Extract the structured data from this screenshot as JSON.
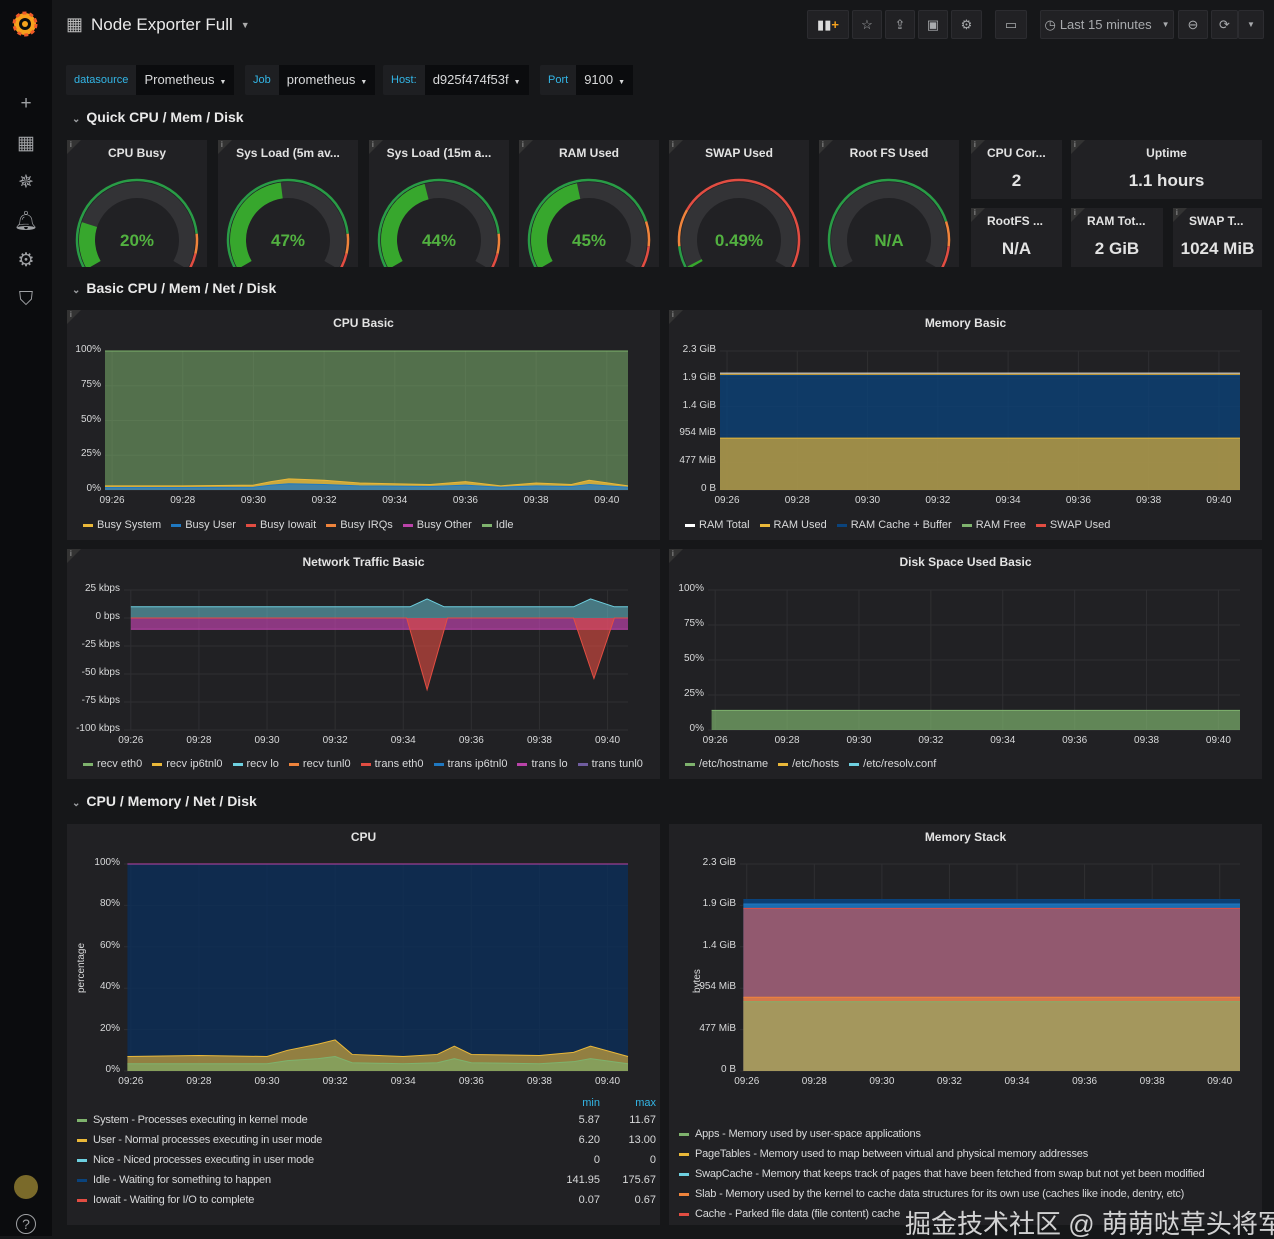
{
  "header": {
    "title": "Node Exporter Full",
    "time_range": "Last 15 minutes"
  },
  "variables": [
    {
      "label": "datasource",
      "value": "Prometheus"
    },
    {
      "label": "Job",
      "value": "prometheus"
    },
    {
      "label": "Host:",
      "value": "d925f474f53f"
    },
    {
      "label": "Port",
      "value": "9100"
    }
  ],
  "rows": [
    "Quick CPU / Mem / Disk",
    "Basic CPU / Mem / Net / Disk",
    "CPU / Memory / Net / Disk"
  ],
  "gauges": [
    {
      "title": "CPU Busy",
      "value": "20%",
      "fraction": 0.2,
      "thresholds": [
        [
          0.85,
          "#299c46"
        ],
        [
          0.93,
          "#ef843c"
        ],
        [
          1,
          "#e24d42"
        ]
      ]
    },
    {
      "title": "Sys Load (5m av...",
      "value": "47%",
      "fraction": 0.47,
      "thresholds": [
        [
          0.85,
          "#299c46"
        ],
        [
          0.93,
          "#ef843c"
        ],
        [
          1,
          "#e24d42"
        ]
      ]
    },
    {
      "title": "Sys Load (15m a...",
      "value": "44%",
      "fraction": 0.44,
      "thresholds": [
        [
          0.85,
          "#299c46"
        ],
        [
          0.93,
          "#ef843c"
        ],
        [
          1,
          "#e24d42"
        ]
      ]
    },
    {
      "title": "RAM Used",
      "value": "45%",
      "fraction": 0.45,
      "thresholds": [
        [
          0.8,
          "#299c46"
        ],
        [
          0.9,
          "#ef843c"
        ],
        [
          1,
          "#e24d42"
        ]
      ]
    },
    {
      "title": "SWAP Used",
      "value": "0.49%",
      "fraction": 0.0049,
      "thresholds": [
        [
          0.1,
          "#299c46"
        ],
        [
          0.25,
          "#ef843c"
        ],
        [
          1,
          "#e24d42"
        ]
      ]
    },
    {
      "title": "Root FS Used",
      "value": "N/A",
      "fraction": 0,
      "thresholds": [
        [
          0.8,
          "#299c46"
        ],
        [
          0.9,
          "#ef843c"
        ],
        [
          1,
          "#e24d42"
        ]
      ]
    }
  ],
  "stats": [
    {
      "title": "CPU Cor...",
      "value": "2"
    },
    {
      "title": "Uptime",
      "value": "1.1 hours"
    },
    {
      "title": "RootFS ...",
      "value": "N/A"
    },
    {
      "title": "RAM Tot...",
      "value": "2 GiB"
    },
    {
      "title": "SWAP T...",
      "value": "1024 MiB"
    }
  ],
  "x_ticks": [
    "09:26",
    "09:28",
    "09:30",
    "09:32",
    "09:34",
    "09:36",
    "09:38",
    "09:40"
  ],
  "graphs": {
    "cpu_basic": {
      "title": "CPU Basic",
      "y_max": 100,
      "y_min": 0,
      "y_ticks": [
        [
          0,
          "0%"
        ],
        [
          25,
          "25%"
        ],
        [
          50,
          "50%"
        ],
        [
          75,
          "75%"
        ],
        [
          100,
          "100%"
        ]
      ],
      "series": [
        {
          "name": "Idle",
          "color": "#7eb26d",
          "op": 0.55,
          "points": [
            [
              -0.2,
              100
            ],
            [
              14.6,
              100
            ]
          ]
        },
        {
          "name": "Busy User",
          "color": "#eab839",
          "op": 0.8,
          "points": [
            [
              -0.2,
              3
            ],
            [
              2,
              3
            ],
            [
              4,
              3.5
            ],
            [
              4.5,
              6
            ],
            [
              5,
              8
            ],
            [
              6,
              7
            ],
            [
              7,
              5
            ],
            [
              9,
              4
            ],
            [
              10,
              6
            ],
            [
              11,
              3
            ],
            [
              12,
              5
            ],
            [
              13,
              4
            ],
            [
              13.5,
              7
            ],
            [
              14.6,
              3
            ]
          ]
        },
        {
          "name": "Busy System",
          "color": "#1f78c1",
          "op": 0.8,
          "points": [
            [
              -0.2,
              1.8
            ],
            [
              2,
              1.8
            ],
            [
              4,
              2
            ],
            [
              4.5,
              3.5
            ],
            [
              5,
              4.5
            ],
            [
              6,
              4
            ],
            [
              7,
              3
            ],
            [
              9,
              2.5
            ],
            [
              10,
              3.5
            ],
            [
              11,
              2
            ],
            [
              12,
              3
            ],
            [
              13,
              2.5
            ],
            [
              13.5,
              4
            ],
            [
              14.6,
              2
            ]
          ]
        }
      ],
      "legend": [
        [
          "Busy System",
          "#eab839"
        ],
        [
          "Busy User",
          "#1f78c1"
        ],
        [
          "Busy Iowait",
          "#e24d42"
        ],
        [
          "Busy IRQs",
          "#ef843c"
        ],
        [
          "Busy Other",
          "#ba43a9"
        ],
        [
          "Idle",
          "#7eb26d"
        ]
      ]
    },
    "memory_basic": {
      "title": "Memory Basic",
      "y_max": 2.33,
      "y_min": 0,
      "y_ticks": [
        [
          0,
          "0 B"
        ],
        [
          0.466,
          "477 MiB"
        ],
        [
          0.932,
          "954 MiB"
        ],
        [
          1.398,
          "1.4 GiB"
        ],
        [
          1.864,
          "1.9 GiB"
        ],
        [
          2.33,
          "2.3 GiB"
        ]
      ],
      "series": [
        {
          "name": "RAM Cache + Buffer",
          "color": "#0a437c",
          "op": 0.75,
          "points": [
            [
              -0.2,
              1.92
            ],
            [
              14.6,
              1.92
            ]
          ]
        },
        {
          "name": "RAM Used",
          "color": "#eab839",
          "op": 0.65,
          "points": [
            [
              -0.2,
              0.87
            ],
            [
              14.6,
              0.87
            ]
          ]
        },
        {
          "name": "RAM Free",
          "color": "#eab839",
          "op": 0,
          "line": true,
          "points": [
            [
              -0.2,
              1.94
            ],
            [
              14.6,
              1.94
            ]
          ]
        },
        {
          "name": "RAM Total",
          "color": "#dddddd",
          "op": 0,
          "line": true,
          "points": [
            [
              -0.2,
              1.96
            ],
            [
              14.6,
              1.96
            ]
          ]
        }
      ],
      "legend": [
        [
          "RAM Total",
          "#ffffff"
        ],
        [
          "RAM Used",
          "#eab839"
        ],
        [
          "RAM Cache + Buffer",
          "#0a437c"
        ],
        [
          "RAM Free",
          "#7eb26d"
        ],
        [
          "SWAP Used",
          "#e24d42"
        ]
      ]
    },
    "network_basic": {
      "title": "Network Traffic Basic",
      "y_max": 25,
      "y_min": -100,
      "y_ticks": [
        [
          25,
          "25 kbps"
        ],
        [
          0,
          "0 bps"
        ],
        [
          -25,
          "-25 kbps"
        ],
        [
          -50,
          "-50 kbps"
        ],
        [
          -75,
          "-75 kbps"
        ],
        [
          -100,
          "-100 kbps"
        ]
      ],
      "series": [
        {
          "name": "recv eth0",
          "color": "#6ed0e0",
          "op": 0.5,
          "points": [
            [
              0,
              10
            ],
            [
              8.2,
              10
            ],
            [
              8.7,
              17
            ],
            [
              9.2,
              10
            ],
            [
              13,
              10
            ],
            [
              13.5,
              17
            ],
            [
              14.2,
              10
            ],
            [
              14.6,
              10
            ]
          ]
        },
        {
          "name": "trans lo",
          "color": "#ba43a9",
          "op": 0.7,
          "points": [
            [
              0,
              -10
            ],
            [
              14.6,
              -10
            ]
          ]
        },
        {
          "name": "trans eth0",
          "color": "#e24d42",
          "op": 0.6,
          "points": [
            [
              0,
              0
            ],
            [
              8.1,
              0
            ],
            [
              8.7,
              -64
            ],
            [
              9.3,
              0
            ],
            [
              13,
              0
            ],
            [
              13.6,
              -54
            ],
            [
              14.2,
              0
            ],
            [
              14.6,
              0
            ]
          ]
        }
      ],
      "legend": [
        [
          "recv eth0",
          "#7eb26d"
        ],
        [
          "recv ip6tnl0",
          "#eab839"
        ],
        [
          "recv lo",
          "#6ed0e0"
        ],
        [
          "recv tunl0",
          "#ef843c"
        ],
        [
          "trans eth0",
          "#e24d42"
        ],
        [
          "trans ip6tnl0",
          "#1f78c1"
        ],
        [
          "trans lo",
          "#ba43a9"
        ],
        [
          "trans tunl0",
          "#705da0"
        ]
      ]
    },
    "disk_basic": {
      "title": "Disk Space Used Basic",
      "y_max": 100,
      "y_min": 0,
      "y_ticks": [
        [
          0,
          "0%"
        ],
        [
          25,
          "25%"
        ],
        [
          50,
          "50%"
        ],
        [
          75,
          "75%"
        ],
        [
          100,
          "100%"
        ]
      ],
      "series": [
        {
          "name": "/etc/hostname",
          "color": "#7eb26d",
          "op": 0.7,
          "points": [
            [
              -0.1,
              14
            ],
            [
              14.6,
              14
            ]
          ]
        }
      ],
      "legend": [
        [
          "/etc/hostname",
          "#7eb26d"
        ],
        [
          "/etc/hosts",
          "#eab839"
        ],
        [
          "/etc/resolv.conf",
          "#6ed0e0"
        ]
      ]
    },
    "cpu": {
      "title": "CPU",
      "y_max": 100,
      "y_min": 0,
      "ylabel": "percentage",
      "y_ticks": [
        [
          0,
          "0%"
        ],
        [
          20,
          "20%"
        ],
        [
          40,
          "40%"
        ],
        [
          60,
          "60%"
        ],
        [
          80,
          "80%"
        ],
        [
          100,
          "100%"
        ]
      ],
      "series": [
        {
          "name": "Idle",
          "color": "#0a2f5c",
          "op": 0.75,
          "points": [
            [
              -0.1,
              100
            ],
            [
              14.6,
              100
            ]
          ]
        },
        {
          "name": "User",
          "color": "#eab839",
          "op": 0.6,
          "points": [
            [
              -0.1,
              7
            ],
            [
              2,
              7.5
            ],
            [
              4,
              7
            ],
            [
              4.6,
              10
            ],
            [
              5.5,
              13
            ],
            [
              6,
              15
            ],
            [
              6.5,
              8
            ],
            [
              8,
              7
            ],
            [
              9,
              8
            ],
            [
              9.5,
              12
            ],
            [
              10,
              8
            ],
            [
              12,
              7.5
            ],
            [
              13,
              9
            ],
            [
              13.5,
              12
            ],
            [
              14.6,
              7
            ]
          ]
        },
        {
          "name": "System",
          "color": "#7eb26d",
          "op": 0.6,
          "points": [
            [
              -0.1,
              3.5
            ],
            [
              2,
              3.5
            ],
            [
              4,
              3.5
            ],
            [
              4.6,
              5
            ],
            [
              5.5,
              6
            ],
            [
              6,
              7
            ],
            [
              6.5,
              4
            ],
            [
              8,
              3.5
            ],
            [
              9,
              4
            ],
            [
              9.5,
              6
            ],
            [
              10,
              4
            ],
            [
              12,
              3.5
            ],
            [
              13,
              4.5
            ],
            [
              13.5,
              6
            ],
            [
              14.6,
              3.5
            ]
          ]
        },
        {
          "name": "Steal",
          "color": "#ba43a9",
          "op": 0,
          "line": true,
          "points": [
            [
              -0.1,
              100
            ],
            [
              14.6,
              100
            ]
          ]
        }
      ],
      "legend_header": [
        "min",
        "max"
      ],
      "legend": [
        [
          "System - Processes executing in kernel mode",
          "#7eb26d",
          "5.87",
          "11.67"
        ],
        [
          "User - Normal processes executing in user mode",
          "#eab839",
          "6.20",
          "13.00"
        ],
        [
          "Nice - Niced processes executing in user mode",
          "#6ed0e0",
          "0",
          "0"
        ],
        [
          "Idle - Waiting for something to happen",
          "#0a437c",
          "141.95",
          "175.67"
        ],
        [
          "Iowait - Waiting for I/O to complete",
          "#e24d42",
          "0.07",
          "0.67"
        ]
      ]
    },
    "memory_stack": {
      "title": "Memory Stack",
      "y_max": 2.33,
      "y_min": 0,
      "ylabel": "bytes",
      "y_ticks": [
        [
          0,
          "0 B"
        ],
        [
          0.466,
          "477 MiB"
        ],
        [
          0.932,
          "954 MiB"
        ],
        [
          1.398,
          "1.4 GiB"
        ],
        [
          1.864,
          "1.9 GiB"
        ],
        [
          2.33,
          "2.3 GiB"
        ]
      ],
      "series": [
        {
          "name": "Free",
          "color": "#0a437c",
          "op": 0.9,
          "points": [
            [
              -0.1,
              1.93
            ],
            [
              14.6,
              1.93
            ]
          ]
        },
        {
          "name": "SwapCache",
          "color": "#1f78c1",
          "op": 0.8,
          "points": [
            [
              -0.1,
              1.88
            ],
            [
              14.6,
              1.88
            ]
          ]
        },
        {
          "name": "Cache",
          "color": "#e24d42",
          "op": 0.6,
          "points": [
            [
              -0.1,
              1.83
            ],
            [
              14.6,
              1.83
            ]
          ]
        },
        {
          "name": "Slab",
          "color": "#ef843c",
          "op": 0.7,
          "points": [
            [
              -0.1,
              0.83
            ],
            [
              14.6,
              0.83
            ]
          ]
        },
        {
          "name": "Apps",
          "color": "#7eb26d",
          "op": 0.55,
          "points": [
            [
              -0.1,
              0.78
            ],
            [
              14.6,
              0.78
            ]
          ]
        }
      ],
      "legend": [
        [
          "Apps - Memory used by user-space applications",
          "#7eb26d"
        ],
        [
          "PageTables - Memory used to map between virtual and physical memory addresses",
          "#eab839"
        ],
        [
          "SwapCache - Memory that keeps track of pages that have been fetched from swap but not yet been modified",
          "#6ed0e0"
        ],
        [
          "Slab - Memory used by the kernel to cache data structures for its own use (caches like inode, dentry, etc)",
          "#ef843c"
        ],
        [
          "Cache - Parked file data (file content) cache",
          "#e24d42"
        ]
      ]
    }
  },
  "watermark": "掘金技术社区 @ 萌萌哒草头将军"
}
